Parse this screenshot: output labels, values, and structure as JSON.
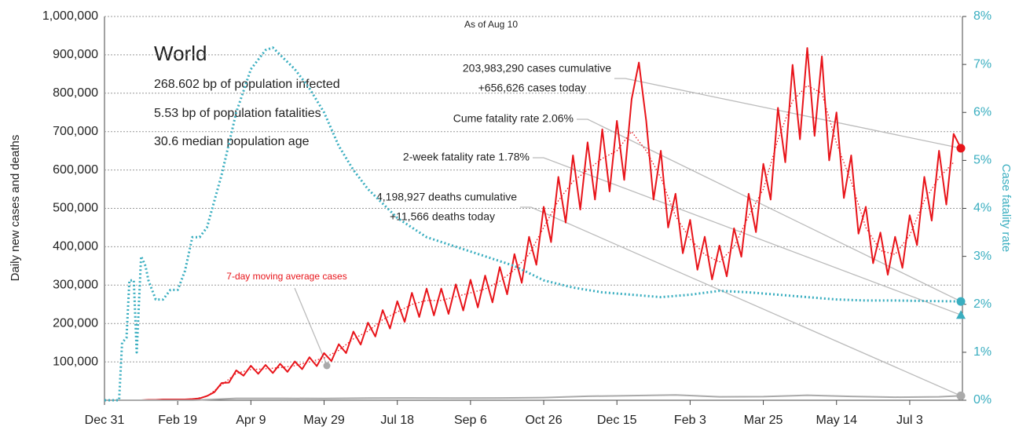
{
  "chart_data": {
    "type": "line",
    "subtitle": "As of Aug 10",
    "region": "World",
    "info": [
      "268.602 bp of population infected",
      "5.53 bp of population fatalities",
      "30.6 median population age"
    ],
    "y_label": "Daily new cases and deaths",
    "y2_label": "Case fatality rate",
    "annotations": {
      "cases": [
        "203,983,290 cases cumulative",
        "+656,626 cases today"
      ],
      "cume": "Cume fatality rate 2.06%",
      "two_week": "2-week fatality rate 1.78%",
      "deaths": [
        "4,198,927 deaths cumulative",
        "+11,566 deaths today"
      ],
      "avg": "7-day moving average cases"
    },
    "markers": {
      "cases_today": 656626,
      "cume_cfr": 2.06,
      "two_week_cfr": 1.78,
      "deaths_today": 11566
    },
    "xlim": [
      0,
      586
    ],
    "xticks": [
      {
        "value": 0,
        "label": "Dec 31"
      },
      {
        "value": 50,
        "label": "Feb 19"
      },
      {
        "value": 100,
        "label": "Apr 9"
      },
      {
        "value": 150,
        "label": "May 29"
      },
      {
        "value": 200,
        "label": "Jul 18"
      },
      {
        "value": 250,
        "label": "Sep 6"
      },
      {
        "value": 300,
        "label": "Oct 26"
      },
      {
        "value": 350,
        "label": "Dec 15"
      },
      {
        "value": 400,
        "label": "Feb 3"
      },
      {
        "value": 450,
        "label": "Mar 25"
      },
      {
        "value": 500,
        "label": "May 14"
      },
      {
        "value": 550,
        "label": "Jul 3"
      }
    ],
    "ylim": [
      0,
      1000000
    ],
    "yticks": [
      {
        "value": 100000,
        "label": "100,000"
      },
      {
        "value": 200000,
        "label": "200,000"
      },
      {
        "value": 300000,
        "label": "300,000"
      },
      {
        "value": 400000,
        "label": "400,000"
      },
      {
        "value": 500000,
        "label": "500,000"
      },
      {
        "value": 600000,
        "label": "600,000"
      },
      {
        "value": 700000,
        "label": "700,000"
      },
      {
        "value": 800000,
        "label": "800,000"
      },
      {
        "value": 900000,
        "label": "900,000"
      },
      {
        "value": 1000000,
        "label": "1,000,000"
      }
    ],
    "y2lim": [
      0,
      8
    ],
    "y2ticks": [
      {
        "value": 0,
        "label": "0%"
      },
      {
        "value": 1,
        "label": "1%"
      },
      {
        "value": 2,
        "label": "2%"
      },
      {
        "value": 3,
        "label": "3%"
      },
      {
        "value": 4,
        "label": "4%"
      },
      {
        "value": 5,
        "label": "5%"
      },
      {
        "value": 6,
        "label": "6%"
      },
      {
        "value": 7,
        "label": "7%"
      },
      {
        "value": 8,
        "label": "8%"
      }
    ],
    "grid": true,
    "series": [
      {
        "name": "Daily cases",
        "color": "#e8141a",
        "style": "solid",
        "x": [
          0,
          5,
          10,
          15,
          20,
          25,
          30,
          35,
          40,
          45,
          50,
          55,
          60,
          65,
          70,
          75,
          80,
          85,
          90,
          95,
          100,
          105,
          110,
          115,
          120,
          125,
          130,
          135,
          140,
          145,
          150,
          155,
          160,
          165,
          170,
          175,
          180,
          185,
          190,
          195,
          200,
          205,
          210,
          215,
          220,
          225,
          230,
          235,
          240,
          245,
          250,
          255,
          260,
          265,
          270,
          275,
          280,
          285,
          290,
          295,
          300,
          305,
          310,
          315,
          320,
          325,
          330,
          335,
          340,
          345,
          350,
          355,
          360,
          365,
          370,
          375,
          380,
          385,
          390,
          395,
          400,
          405,
          410,
          415,
          420,
          425,
          430,
          435,
          440,
          445,
          450,
          455,
          460,
          465,
          470,
          475,
          480,
          485,
          490,
          495,
          500,
          505,
          510,
          515,
          520,
          525,
          530,
          535,
          540,
          545,
          550,
          555,
          560,
          565,
          570,
          575,
          580,
          585
        ],
        "values": [
          0,
          0,
          0,
          0,
          0,
          0,
          1000,
          1000,
          2000,
          2000,
          2000,
          2000,
          3000,
          5000,
          11000,
          21000,
          45000,
          46000,
          78000,
          64000,
          90000,
          69000,
          92000,
          71000,
          95000,
          74000,
          101000,
          81000,
          112000,
          89000,
          123000,
          102000,
          146000,
          123000,
          179000,
          145000,
          202000,
          166000,
          235000,
          187000,
          258000,
          204000,
          280000,
          217000,
          291000,
          221000,
          291000,
          225000,
          302000,
          234000,
          314000,
          242000,
          325000,
          255000,
          347000,
          276000,
          381000,
          306000,
          426000,
          353000,
          504000,
          412000,
          582000,
          463000,
          638000,
          497000,
          672000,
          523000,
          706000,
          544000,
          728000,
          574000,
          784000,
          880000,
          728000,
          523000,
          650000,
          450000,
          538000,
          383000,
          470000,
          340000,
          426000,
          315000,
          403000,
          323000,
          448000,
          374000,
          538000,
          438000,
          616000,
          523000,
          762000,
          620000,
          874000,
          680000,
          918000,
          689000,
          896000,
          625000,
          750000,
          527000,
          638000,
          434000,
          504000,
          357000,
          437000,
          327000,
          426000,
          345000,
          482000,
          404000,
          582000,
          468000,
          650000,
          510000,
          694000,
          656626
        ]
      },
      {
        "name": "7-day moving average cases",
        "color": "#e8141a",
        "style": "dotted",
        "x": [
          0,
          10,
          20,
          30,
          40,
          50,
          60,
          70,
          80,
          90,
          100,
          110,
          120,
          130,
          140,
          150,
          160,
          170,
          180,
          190,
          200,
          210,
          220,
          230,
          240,
          250,
          260,
          270,
          280,
          290,
          300,
          310,
          320,
          330,
          340,
          350,
          360,
          370,
          380,
          390,
          400,
          410,
          420,
          430,
          440,
          450,
          460,
          470,
          480,
          490,
          500,
          510,
          520,
          530,
          540,
          550,
          560,
          570,
          580
        ],
        "values": [
          0,
          0,
          0,
          1000,
          2000,
          2000,
          3000,
          10000,
          40000,
          70000,
          80000,
          82000,
          85000,
          90000,
          100000,
          110000,
          130000,
          160000,
          180000,
          210000,
          230000,
          250000,
          260000,
          260000,
          270000,
          280000,
          290000,
          310000,
          340000,
          380000,
          450000,
          520000,
          570000,
          600000,
          630000,
          650000,
          700000,
          650000,
          580000,
          480000,
          420000,
          380000,
          360000,
          400000,
          480000,
          550000,
          680000,
          780000,
          820000,
          800000,
          670000,
          570000,
          450000,
          390000,
          380000,
          430000,
          520000,
          580000,
          620000
        ]
      },
      {
        "name": "Daily deaths",
        "color": "#aaaaaa",
        "style": "solid",
        "x": [
          0,
          30,
          60,
          90,
          120,
          150,
          180,
          210,
          240,
          270,
          300,
          330,
          360,
          390,
          420,
          450,
          480,
          510,
          540,
          570,
          585
        ],
        "values": [
          0,
          0,
          100,
          5000,
          5000,
          4500,
          5500,
          6000,
          5500,
          6000,
          7000,
          10500,
          12000,
          14000,
          9000,
          9500,
          13000,
          10000,
          8000,
          9000,
          11566
        ]
      },
      {
        "name": "Case fatality rate",
        "color": "#3aaec0",
        "style": "dotted",
        "axis": "y2",
        "x": [
          0,
          10,
          12,
          15,
          17,
          20,
          22,
          25,
          28,
          30,
          35,
          40,
          45,
          50,
          55,
          60,
          65,
          70,
          80,
          90,
          100,
          110,
          115,
          120,
          130,
          140,
          150,
          160,
          170,
          180,
          190,
          200,
          210,
          220,
          230,
          240,
          250,
          260,
          270,
          280,
          290,
          300,
          320,
          340,
          360,
          380,
          400,
          420,
          440,
          460,
          480,
          500,
          520,
          540,
          560,
          586
        ],
        "values": [
          0,
          0,
          1.2,
          1.3,
          2.5,
          2.5,
          1.0,
          3.0,
          2.8,
          2.5,
          2.1,
          2.1,
          2.3,
          2.3,
          2.7,
          3.4,
          3.4,
          3.6,
          4.7,
          6.0,
          6.9,
          7.3,
          7.35,
          7.2,
          6.9,
          6.5,
          6.0,
          5.3,
          4.8,
          4.4,
          4.1,
          3.8,
          3.6,
          3.4,
          3.3,
          3.2,
          3.1,
          3.0,
          2.9,
          2.8,
          2.65,
          2.5,
          2.35,
          2.25,
          2.2,
          2.15,
          2.2,
          2.28,
          2.25,
          2.2,
          2.15,
          2.1,
          2.08,
          2.08,
          2.07,
          2.06
        ]
      }
    ]
  }
}
